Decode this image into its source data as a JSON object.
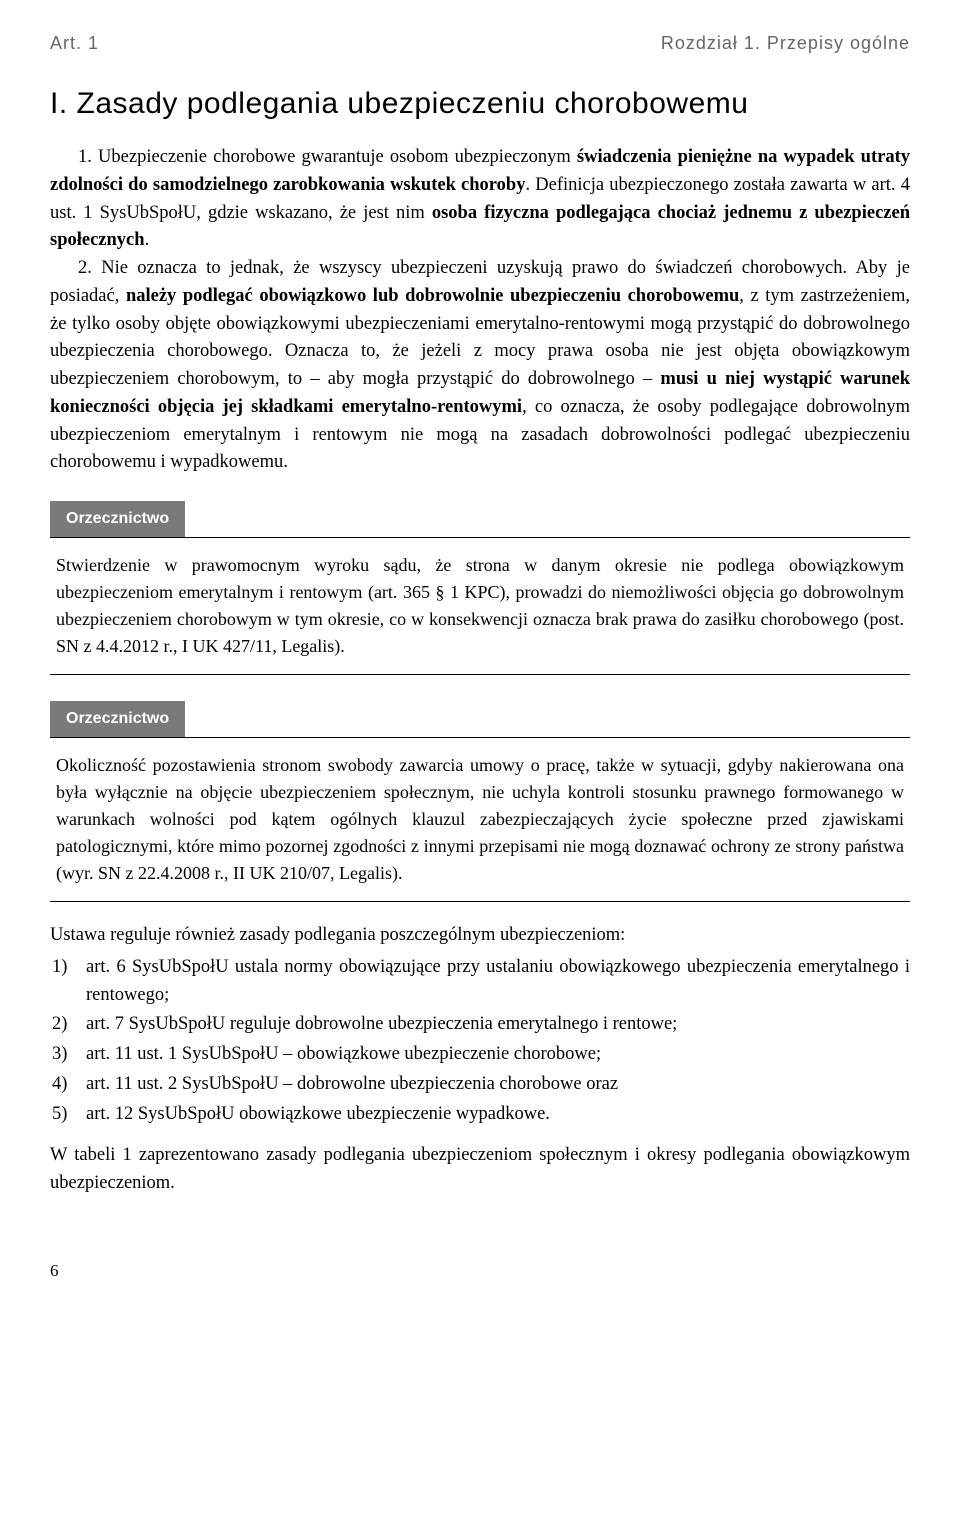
{
  "header": {
    "left": "Art. 1",
    "right": "Rozdział 1. Przepisy ogólne"
  },
  "section_title": "I. Zasady podlegania ubezpieczeniu chorobowemu",
  "main_para_prefix": "1. Ubezpieczenie chorobowe gwarantuje osobom ubezpieczonym ",
  "main_para_b1": "świadczenia pieniężne na wypadek utraty zdolności do samodzielnego zarobkowania wskutek choroby",
  "main_para_mid1": ". Definicja ubezpieczonego została zawarta w art. 4 ust. 1 SysUbSpołU, gdzie wskazano, że jest nim ",
  "main_para_b2": "osoba fizyczna podlegająca chociaż jednemu z ubezpieczeń społecznych",
  "main_para_after_b2": ". ",
  "main_para_part2_prefix": "2. Nie oznacza to jednak, że wszyscy ubezpieczeni uzyskują prawo do świadczeń chorobowych. Aby je posiadać, ",
  "main_para_b3": "należy podlegać obowiązkowo lub dobrowolnie ubezpieczeniu chorobowemu",
  "main_para_mid2": ", z tym zastrzeżeniem, że tylko osoby objęte obowiązkowymi ubezpieczeniami emerytalno-rentowymi mogą przystąpić do dobrowolnego ubezpieczenia chorobowego. Oznacza to, że jeżeli z mocy prawa osoba nie jest objęta obowiązkowym ubezpieczeniem chorobowym, to – aby mogła przystąpić do dobrowolnego – ",
  "main_para_b4": "musi u niej wystąpić warunek konieczności objęcia jej składkami emerytalno-rentowymi",
  "main_para_end": ", co oznacza, że osoby podlegające dobrowolnym ubezpieczeniom emerytalnym i rentowym nie mogą na zasadach dobrowolności podlegać ubezpieczeniu chorobowemu i wypadkowemu.",
  "label_orzecznictwo": "Orzecznictwo",
  "ruling1": "Stwierdzenie w prawomocnym wyroku sądu, że strona w danym okresie nie podlega obowiązkowym ubezpieczeniom emerytalnym i rentowym (art. 365 § 1 KPC), prowadzi do niemożliwości objęcia go dobrowolnym ubezpieczeniem chorobowym w tym okresie, co w konsekwencji oznacza brak prawa do zasiłku chorobowego (post. SN z 4.4.2012 r., I UK 427/11, Legalis).",
  "ruling2": "Okoliczność pozostawienia stronom swobody zawarcia umowy o pracę, także w sytuacji, gdyby nakierowana ona była wyłącznie na objęcie ubezpieczeniem społecznym, nie uchyla kontroli stosunku prawnego formowanego w warunkach wolności pod kątem ogólnych klauzul zabezpieczających życie społeczne przed zjawiskami patologicznymi, które mimo pozornej zgodności z innymi przepisami nie mogą doznawać ochrony ze strony państwa (wyr. SN z 22.4.2008 r., II UK 210/07, Legalis).",
  "list_intro": "Ustawa reguluje również zasady podlegania poszczególnym ubezpieczeniom:",
  "list": [
    {
      "n": "1)",
      "t": "art. 6 SysUbSpołU ustala normy obowiązujące przy ustalaniu obowiązkowego ubezpieczenia emerytalnego i rentowego;"
    },
    {
      "n": "2)",
      "t": "art. 7 SysUbSpołU reguluje dobrowolne ubezpieczenia emerytalnego i rentowe;"
    },
    {
      "n": "3)",
      "t": "art. 11 ust. 1 SysUbSpołU – obowiązkowe ubezpieczenie chorobowe;"
    },
    {
      "n": "4)",
      "t": "art. 11 ust. 2 SysUbSpołU – dobrowolne ubezpieczenia chorobowe oraz"
    },
    {
      "n": "5)",
      "t": "art. 12 SysUbSpołU obowiązkowe ubezpieczenie wypadkowe."
    }
  ],
  "closing": "W tabeli 1 zaprezentowano zasady podlegania ubezpieczeniom społecznym i okresy podlegania obowiązkowym ubezpieczeniom.",
  "page_number": "6"
}
